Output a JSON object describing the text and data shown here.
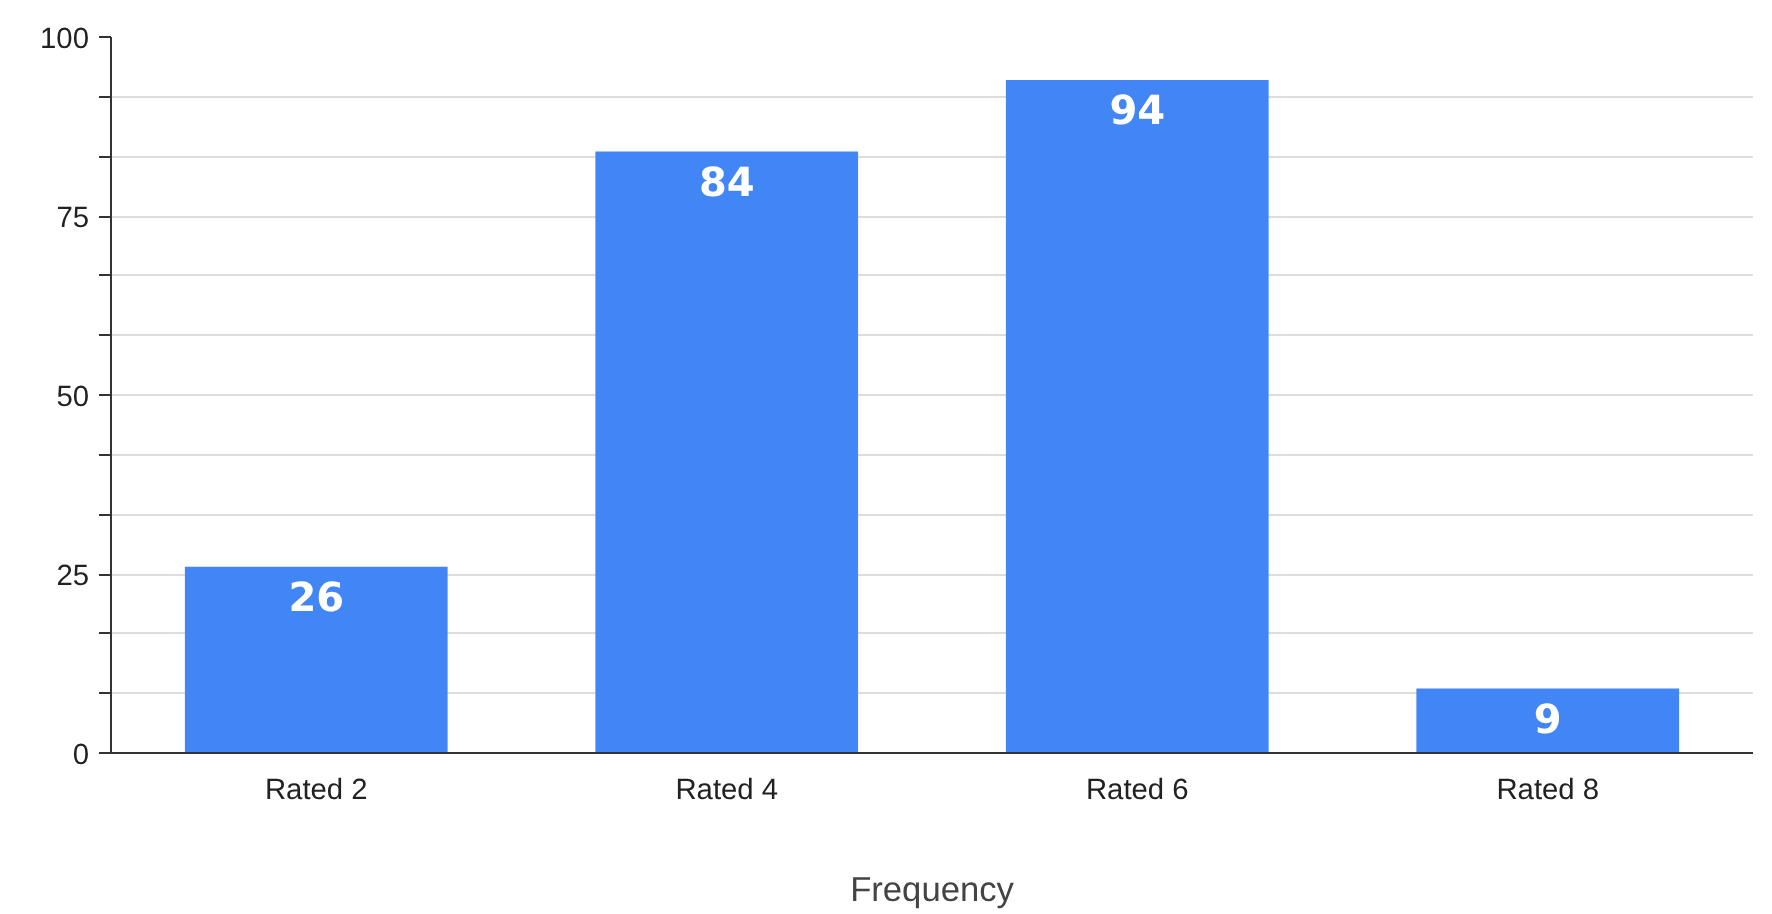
{
  "chart_data": {
    "type": "bar",
    "xlabel": "Frequency",
    "categories": [
      "Rated 2",
      "Rated 4",
      "Rated 6",
      "Rated 8"
    ],
    "values": [
      26,
      84,
      94,
      9
    ],
    "color": "#4285f4",
    "data_labels": true,
    "ylim": [
      0,
      100
    ],
    "yticks": [
      0,
      {
        "value": 8.3333,
        "label": null
      },
      {
        "value": 16.6667,
        "label": null
      },
      25,
      {
        "value": 33.3333,
        "label": null
      },
      {
        "value": 41.6667,
        "label": null
      },
      50,
      {
        "value": 58.3333,
        "label": null
      },
      {
        "value": 66.6667,
        "label": null
      },
      75,
      {
        "value": 83.3333,
        "label": null
      },
      {
        "value": 91.6667,
        "label": null
      },
      100
    ],
    "grid": "y"
  }
}
